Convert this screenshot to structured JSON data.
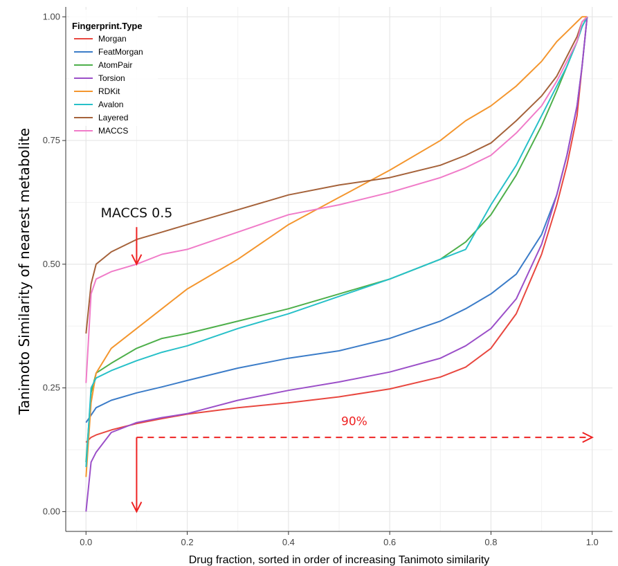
{
  "chart_data": {
    "type": "line",
    "title": "",
    "xlabel": "Drug fraction, sorted in order of increasing Tanimoto similarity",
    "ylabel": "Tanimoto Similarity of nearest metabolite",
    "xlim": [
      -0.04,
      1.04
    ],
    "ylim": [
      -0.04,
      1.02
    ],
    "x_ticks": [
      0.0,
      0.2,
      0.4,
      0.6,
      0.8,
      1.0
    ],
    "x_tick_labels": [
      "0.0",
      "0.2",
      "0.4",
      "0.6",
      "0.8",
      "1.0"
    ],
    "y_ticks": [
      0.0,
      0.25,
      0.5,
      0.75,
      1.0
    ],
    "y_tick_labels": [
      "0.00",
      "0.25",
      "0.50",
      "0.75",
      "1.00"
    ],
    "grid": true,
    "legend": {
      "title": "Fingerprint.Type",
      "placement": "top-left"
    },
    "x": [
      0.0,
      0.01,
      0.02,
      0.05,
      0.1,
      0.15,
      0.2,
      0.3,
      0.4,
      0.5,
      0.6,
      0.7,
      0.75,
      0.8,
      0.85,
      0.9,
      0.93,
      0.95,
      0.97,
      0.98,
      0.99
    ],
    "series": [
      {
        "name": "Morgan",
        "color": "#e8473f",
        "values": [
          0.14,
          0.15,
          0.155,
          0.165,
          0.178,
          0.188,
          0.197,
          0.21,
          0.22,
          0.232,
          0.248,
          0.272,
          0.292,
          0.33,
          0.4,
          0.52,
          0.62,
          0.7,
          0.8,
          0.9,
          1.0
        ]
      },
      {
        "name": "FeatMorgan",
        "color": "#3b7cc8",
        "values": [
          0.18,
          0.195,
          0.21,
          0.225,
          0.24,
          0.252,
          0.265,
          0.29,
          0.31,
          0.325,
          0.35,
          0.385,
          0.41,
          0.44,
          0.48,
          0.56,
          0.64,
          0.72,
          0.82,
          0.9,
          1.0
        ]
      },
      {
        "name": "AtomPair",
        "color": "#4daf4a",
        "values": [
          0.1,
          0.24,
          0.28,
          0.3,
          0.33,
          0.35,
          0.36,
          0.385,
          0.41,
          0.44,
          0.47,
          0.51,
          0.545,
          0.6,
          0.68,
          0.78,
          0.85,
          0.9,
          0.95,
          0.98,
          1.0
        ]
      },
      {
        "name": "Torsion",
        "color": "#9b4fc8",
        "values": [
          0.0,
          0.1,
          0.12,
          0.16,
          0.18,
          0.19,
          0.198,
          0.225,
          0.245,
          0.262,
          0.282,
          0.31,
          0.335,
          0.37,
          0.43,
          0.54,
          0.64,
          0.72,
          0.82,
          0.9,
          1.0
        ]
      },
      {
        "name": "RDKit",
        "color": "#f4962e",
        "values": [
          0.07,
          0.22,
          0.28,
          0.33,
          0.37,
          0.41,
          0.45,
          0.51,
          0.58,
          0.635,
          0.69,
          0.75,
          0.79,
          0.82,
          0.86,
          0.91,
          0.95,
          0.97,
          0.99,
          1.0,
          1.0
        ]
      },
      {
        "name": "Avalon",
        "color": "#27c0c8",
        "values": [
          0.09,
          0.25,
          0.27,
          0.285,
          0.305,
          0.322,
          0.335,
          0.37,
          0.4,
          0.435,
          0.47,
          0.51,
          0.53,
          0.62,
          0.7,
          0.8,
          0.86,
          0.9,
          0.95,
          0.98,
          1.0
        ]
      },
      {
        "name": "Layered",
        "color": "#a5623a",
        "values": [
          0.36,
          0.46,
          0.5,
          0.525,
          0.55,
          0.565,
          0.58,
          0.61,
          0.64,
          0.66,
          0.675,
          0.7,
          0.72,
          0.745,
          0.79,
          0.84,
          0.88,
          0.92,
          0.96,
          0.99,
          1.0
        ]
      },
      {
        "name": "MACCS",
        "color": "#f07bc8",
        "values": [
          0.26,
          0.44,
          0.47,
          0.485,
          0.5,
          0.52,
          0.53,
          0.565,
          0.6,
          0.62,
          0.645,
          0.675,
          0.695,
          0.72,
          0.765,
          0.82,
          0.87,
          0.91,
          0.95,
          0.99,
          1.0
        ]
      }
    ],
    "annotations": {
      "maccs_label": "MACCS 0.5",
      "maccs_arrow": {
        "x": 0.1,
        "y_from": 0.575,
        "y_to": 0.5
      },
      "down_arrow": {
        "x": 0.1,
        "y_from": 0.15,
        "y_to": 0.0
      },
      "dashed_arrow": {
        "x_from": 0.1,
        "x_to": 1.0,
        "y": 0.15
      },
      "percent_label": "90%",
      "percent_label_pos": {
        "x": 0.53,
        "y": 0.175
      },
      "arrow_color": "#ee2222"
    }
  }
}
